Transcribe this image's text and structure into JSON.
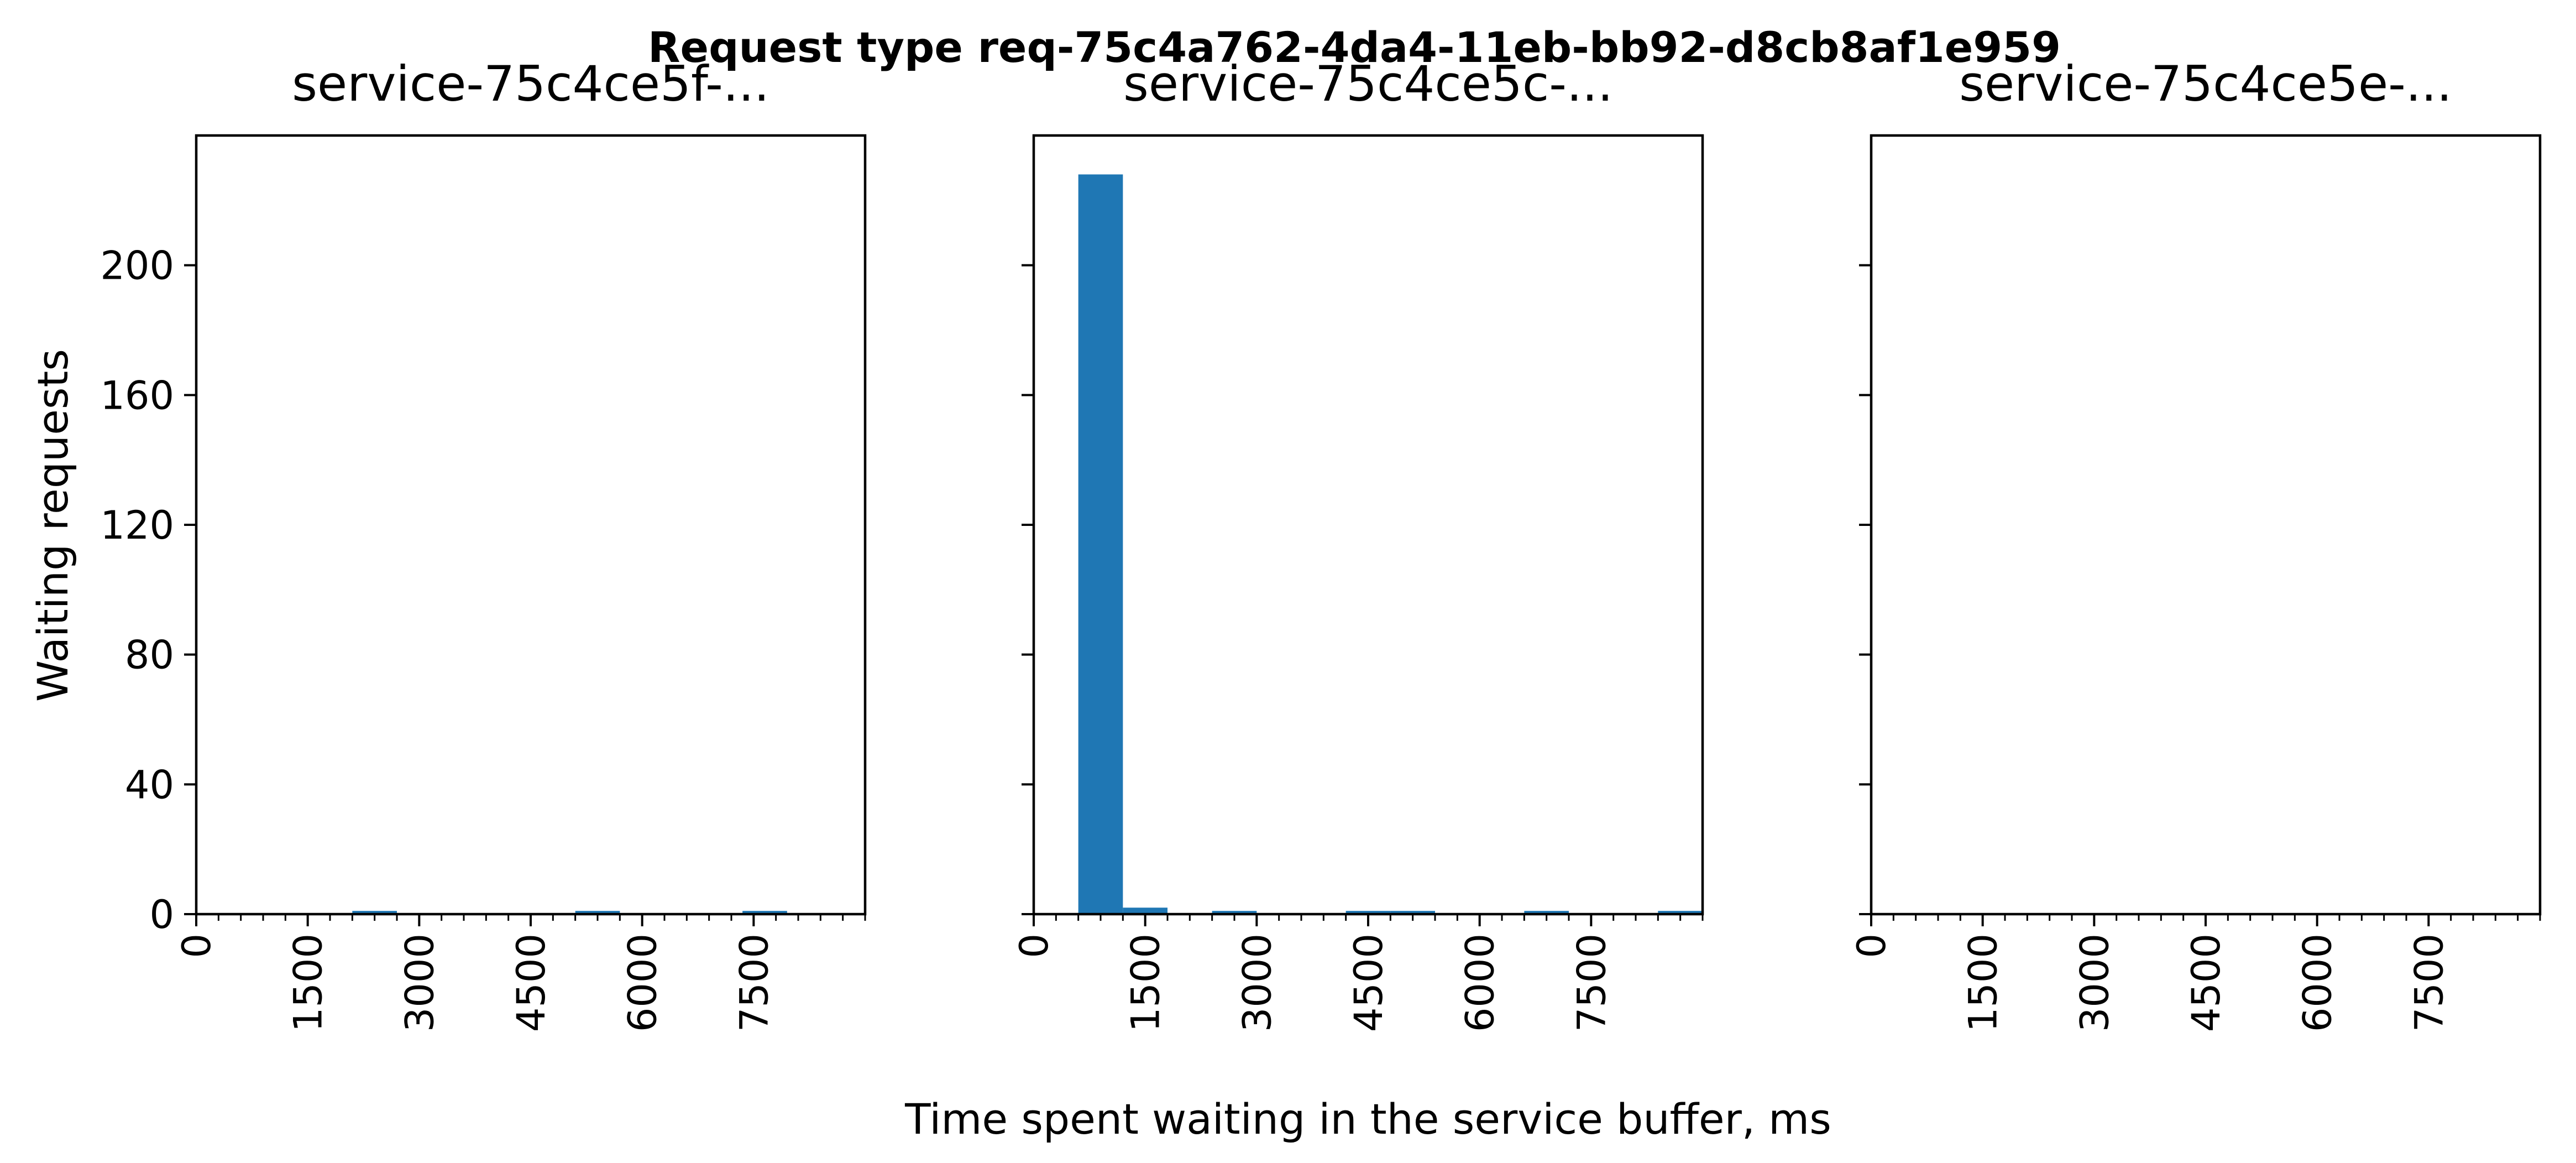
{
  "chart_data": {
    "type": "bar",
    "suptitle": "Request type req-75c4a762-4da4-11eb-bb92-d8cb8af1e959",
    "xlabel": "Time spent waiting in the service buffer, ms",
    "ylabel": "Waiting requests",
    "xlim": [
      0,
      9000
    ],
    "ylim": [
      0,
      240
    ],
    "xticks_major": [
      0,
      1500,
      3000,
      4500,
      6000,
      7500
    ],
    "xtick_labels": [
      "0",
      "1500",
      "3000",
      "4500",
      "6000",
      "7500"
    ],
    "xticks_minor_step": 300,
    "yticks": [
      0,
      40,
      80,
      120,
      160,
      200
    ],
    "ytick_labels": [
      "0",
      "40",
      "80",
      "120",
      "160",
      "200"
    ],
    "bar_color": "#1f77b4",
    "panels": [
      {
        "title": "service-75c4ce5f-...",
        "bins": [
          {
            "x0": 2100,
            "x1": 2700,
            "count": 1
          },
          {
            "x0": 5100,
            "x1": 5700,
            "count": 1
          },
          {
            "x0": 7350,
            "x1": 7950,
            "count": 1
          }
        ]
      },
      {
        "title": "service-75c4ce5c-...",
        "bins": [
          {
            "x0": 600,
            "x1": 1200,
            "count": 228
          },
          {
            "x0": 1200,
            "x1": 1800,
            "count": 2
          },
          {
            "x0": 2400,
            "x1": 3000,
            "count": 1
          },
          {
            "x0": 4200,
            "x1": 4800,
            "count": 1
          },
          {
            "x0": 4800,
            "x1": 5400,
            "count": 1
          },
          {
            "x0": 6600,
            "x1": 7200,
            "count": 1
          },
          {
            "x0": 8400,
            "x1": 9000,
            "count": 1
          }
        ]
      },
      {
        "title": "service-75c4ce5e-...",
        "bins": []
      }
    ]
  }
}
